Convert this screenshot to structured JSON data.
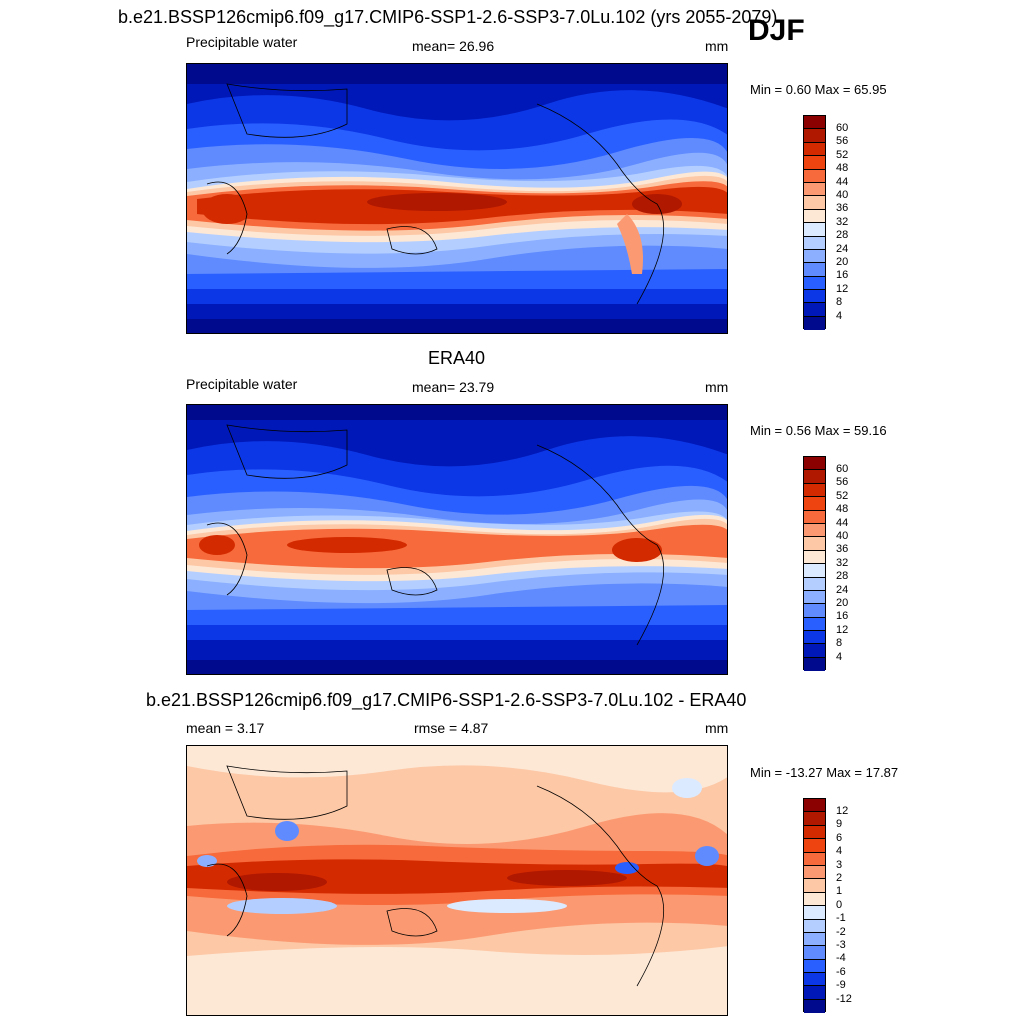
{
  "season": "DJF",
  "panels": [
    {
      "id": "model",
      "title": "b.e21.BSSP126cmip6.f09_g17.CMIP6-SSP1-2.6-SSP3-7.0Lu.102 (yrs 2055-2079)",
      "left_label": "Precipitable water",
      "mid_label": "mean=  26.96",
      "units": "mm",
      "minmax": "Min =   0.60 Max =  65.95",
      "scale": "abs"
    },
    {
      "id": "obs",
      "title": "ERA40",
      "left_label": "Precipitable water",
      "mid_label": "mean=  23.79",
      "units": "mm",
      "minmax": "Min =   0.56 Max =  59.16",
      "scale": "abs"
    },
    {
      "id": "diff",
      "title": "b.e21.BSSP126cmip6.f09_g17.CMIP6-SSP1-2.6-SSP3-7.0Lu.102 - ERA40",
      "left_label": "mean =   3.17",
      "mid_label": "rmse =   4.87",
      "units": "mm",
      "minmax": "Min = -13.27 Max =  17.87",
      "scale": "diff"
    }
  ],
  "colorbars": {
    "abs": {
      "labels": [
        "60",
        "56",
        "52",
        "48",
        "44",
        "40",
        "36",
        "32",
        "28",
        "24",
        "20",
        "16",
        "12",
        "8",
        "4"
      ],
      "colors": [
        "#8b0000",
        "#b01800",
        "#d42a00",
        "#ee4410",
        "#f76a3b",
        "#fb9a72",
        "#fdc8a6",
        "#fde8d6",
        "#dceaff",
        "#b4cfff",
        "#8cb0ff",
        "#5f8bff",
        "#2a5fff",
        "#0c37e6",
        "#0018b8",
        "#000a8c"
      ]
    },
    "diff": {
      "labels": [
        "12",
        "9",
        "6",
        "4",
        "3",
        "2",
        "1",
        "0",
        "-1",
        "-2",
        "-3",
        "-4",
        "-6",
        "-9",
        "-12"
      ],
      "colors": [
        "#8b0000",
        "#b01800",
        "#d42a00",
        "#ee4410",
        "#f76a3b",
        "#fb9a72",
        "#fdc8a6",
        "#fde8d6",
        "#dceaff",
        "#b4cfff",
        "#8cb0ff",
        "#5f8bff",
        "#2a5fff",
        "#0c37e6",
        "#0018b8",
        "#000a8c"
      ]
    }
  }
}
